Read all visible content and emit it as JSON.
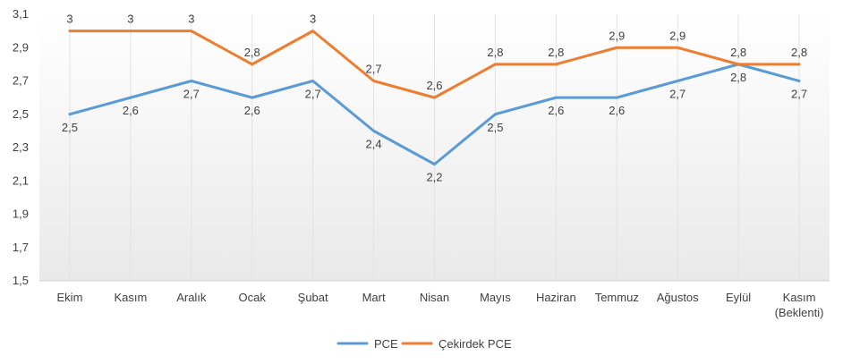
{
  "chart_data": {
    "type": "line",
    "title": "",
    "xlabel": "",
    "ylabel": "",
    "ylim": [
      1.5,
      3.1
    ],
    "yticks": [
      "1,5",
      "1,7",
      "1,9",
      "2,1",
      "2,3",
      "2,5",
      "2,7",
      "2,9",
      "3,1"
    ],
    "ytick_values": [
      1.5,
      1.7,
      1.9,
      2.1,
      2.3,
      2.5,
      2.7,
      2.9,
      3.1
    ],
    "categories": [
      [
        "Ekim"
      ],
      [
        "Kasım"
      ],
      [
        "Aralık"
      ],
      [
        "Ocak"
      ],
      [
        "Şubat"
      ],
      [
        "Mart"
      ],
      [
        "Nisan"
      ],
      [
        "Mayıs"
      ],
      [
        "Haziran"
      ],
      [
        "Temmuz"
      ],
      [
        "Ağustos"
      ],
      [
        "Eylül"
      ],
      [
        "Kasım",
        "(Beklenti)"
      ]
    ],
    "grid": "vertical",
    "legend": "bottom-center",
    "series": [
      {
        "name": "PCE",
        "color": "#5B9BD5",
        "values": [
          2.5,
          2.6,
          2.7,
          2.6,
          2.7,
          2.4,
          2.2,
          2.5,
          2.6,
          2.6,
          2.7,
          2.8,
          2.7
        ],
        "labels": [
          "2,5",
          "2,6",
          "2,7",
          "2,6",
          "2,7",
          "2,4",
          "2,2",
          "2,5",
          "2,6",
          "2,6",
          "2,7",
          "2,8",
          "2,7"
        ],
        "label_position": "below"
      },
      {
        "name": "Çekirdek PCE",
        "color": "#ED7D31",
        "values": [
          3.0,
          3.0,
          3.0,
          2.8,
          3.0,
          2.7,
          2.6,
          2.8,
          2.8,
          2.9,
          2.9,
          2.8,
          2.8
        ],
        "labels": [
          "3",
          "3",
          "3",
          "2,8",
          "3",
          "2,7",
          "2,6",
          "2,8",
          "2,8",
          "2,9",
          "2,9",
          "2,8",
          "2,8"
        ],
        "label_position": "above"
      }
    ]
  }
}
